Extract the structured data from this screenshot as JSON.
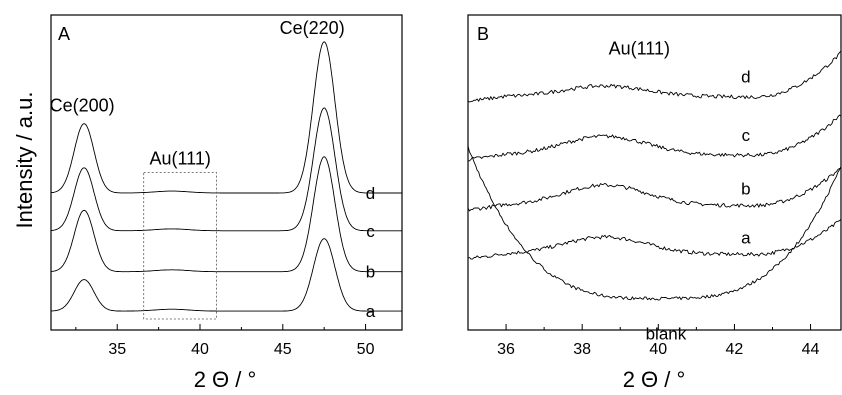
{
  "yaxis_label": "Intensity / a.u.",
  "chart_data": [
    {
      "id": "A",
      "type": "line",
      "panel_label": "A",
      "xlabel": "2 Θ / °",
      "ylabel": "Intensity / a.u.",
      "xlim": [
        31,
        52.2
      ],
      "xticks": [
        35,
        40,
        45,
        50
      ],
      "ylim": [
        0,
        10
      ],
      "peaks": [
        {
          "label": "Ce(200)",
          "x": 33.0
        },
        {
          "label": "Ce(220)",
          "x": 47.5
        }
      ],
      "box": {
        "label": "Au(111)",
        "x": [
          36.6,
          41.0
        ]
      },
      "series": [
        {
          "name": "a",
          "baseline": 0.6,
          "ce200": 1.0,
          "ce220": 2.3
        },
        {
          "name": "b",
          "baseline": 1.85,
          "ce200": 1.95,
          "ce220": 3.65
        },
        {
          "name": "c",
          "baseline": 3.15,
          "ce200": 2.0,
          "ce220": 3.9
        },
        {
          "name": "d",
          "baseline": 4.35,
          "ce200": 2.2,
          "ce220": 4.8
        }
      ]
    },
    {
      "id": "B",
      "type": "line",
      "panel_label": "B",
      "xlabel": "2 Θ / °",
      "xlim": [
        35,
        44.8
      ],
      "xticks": [
        36,
        38,
        40,
        42,
        44
      ],
      "ylim": [
        0,
        10
      ],
      "annotation": {
        "label": "Au(111)",
        "x": 39.5,
        "y": 8.75
      },
      "series": [
        {
          "name": "blank",
          "level": 1.0,
          "bump": 0,
          "edge": 4.5,
          "label_x": 40.2,
          "label_y": -0.3
        },
        {
          "name": "a",
          "level": 2.4,
          "bump": 0.55,
          "edge": 1.1,
          "label_x": 42.3,
          "label_y": 2.75
        },
        {
          "name": "b",
          "level": 3.95,
          "bump": 0.65,
          "edge": 1.2,
          "label_x": 42.3,
          "label_y": 4.3
        },
        {
          "name": "c",
          "level": 5.55,
          "bump": 0.6,
          "edge": 1.3,
          "label_x": 42.3,
          "label_y": 6.0
        },
        {
          "name": "d",
          "level": 7.4,
          "bump": 0.35,
          "edge": 1.4,
          "label_x": 42.3,
          "label_y": 7.85
        }
      ]
    }
  ]
}
